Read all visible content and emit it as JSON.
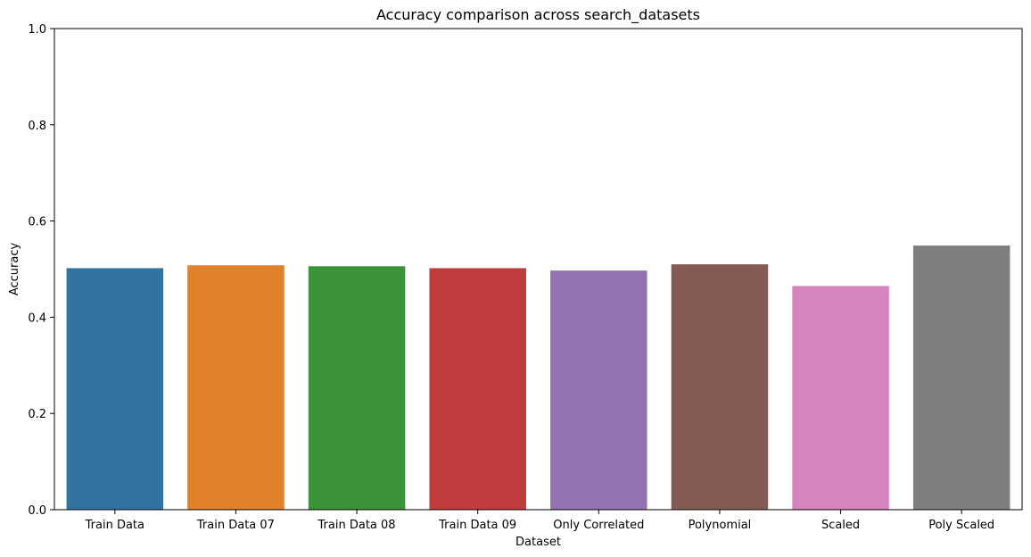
{
  "chart_data": {
    "type": "bar",
    "title": "Accuracy comparison across search_datasets",
    "xlabel": "Dataset",
    "ylabel": "Accuracy",
    "ylim": [
      0,
      1
    ],
    "yticks": [
      "0.0",
      "0.2",
      "0.4",
      "0.6",
      "0.8",
      "1.0"
    ],
    "grid": false,
    "categories": [
      "Train Data",
      "Train Data 07",
      "Train Data 08",
      "Train Data 09",
      "Only Correlated",
      "Polynomial",
      "Scaled",
      "Poly Scaled"
    ],
    "values": [
      0.502,
      0.508,
      0.506,
      0.502,
      0.497,
      0.51,
      0.465,
      0.549
    ],
    "colors": [
      "#3274a1",
      "#e1812c",
      "#3a923a",
      "#c03d3e",
      "#9372b2",
      "#845b53",
      "#d684bd",
      "#7f7f7f"
    ]
  }
}
